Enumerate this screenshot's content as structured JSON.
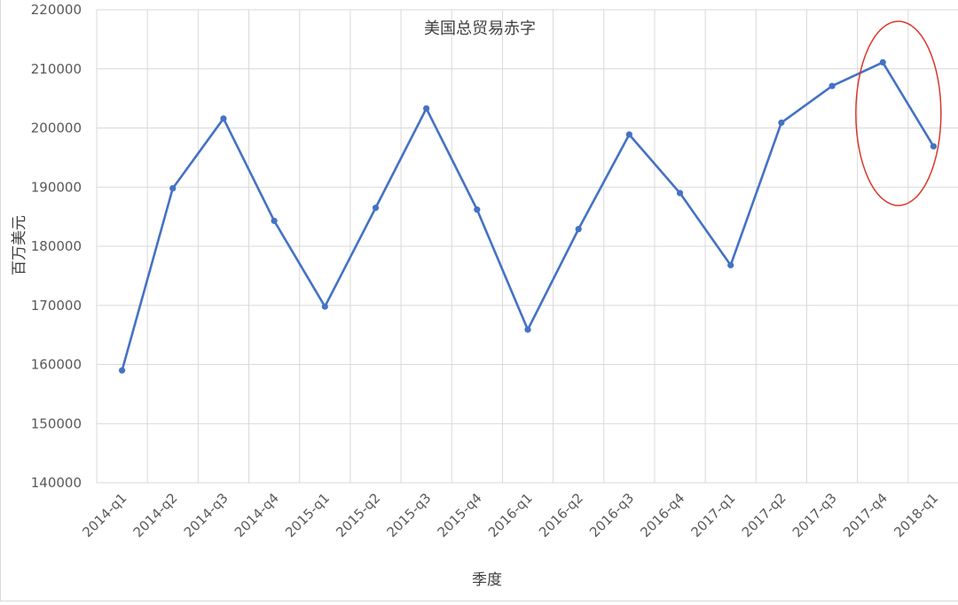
{
  "chart_data": {
    "type": "line",
    "title": "美国总贸易赤字",
    "xlabel": "季度",
    "ylabel": "百万美元",
    "categories": [
      "2014-q1",
      "2014-q2",
      "2014-q3",
      "2014-q4",
      "2015-q1",
      "2015-q2",
      "2015-q3",
      "2015-q4",
      "2016-q1",
      "2016-q2",
      "2016-q3",
      "2016-q4",
      "2017-q1",
      "2017-q2",
      "2017-q3",
      "2017-q4",
      "2018-q1"
    ],
    "series": [
      {
        "values": [
          159000,
          189800,
          201600,
          184300,
          169800,
          186500,
          203300,
          186200,
          165900,
          182900,
          198900,
          189000,
          176800,
          200900,
          207100,
          211100,
          196900
        ]
      }
    ],
    "ylim": [
      140000,
      220000
    ],
    "yticks": [
      140000,
      150000,
      160000,
      170000,
      180000,
      190000,
      200000,
      210000,
      220000
    ],
    "grid": true,
    "legend": "none",
    "colors": {
      "line": "#4472c4",
      "grid": "#d9d9d9",
      "highlight": "#d9372b"
    },
    "annotation": {
      "type": "ellipse",
      "around": [
        "2017-q4",
        "2018-q1"
      ]
    }
  }
}
